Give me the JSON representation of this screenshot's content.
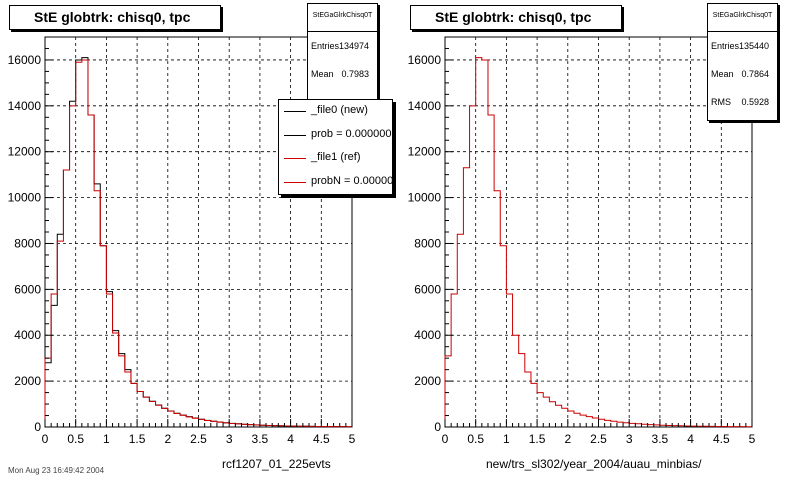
{
  "footer_text": "Mon Aug 23 16:49:42 2004",
  "colors": {
    "new": "#000000",
    "ref": "#cc0000",
    "grid": "#000000"
  },
  "panels": [
    {
      "title": "StE globtrk: chisq0, tpc",
      "stats_title": "StEGaGlrkChisq0T",
      "stats": [
        {
          "key": "Entries",
          "value": "134974"
        },
        {
          "key": "Mean",
          "value": "0.7983"
        }
      ],
      "legend": [
        {
          "label": "_file0 (new)",
          "color": "#000000"
        },
        {
          "label": "prob = 0.000000",
          "color": "#000000"
        },
        {
          "label": "_file1 (ref)",
          "color": "#cc0000"
        },
        {
          "label": "probN = 0.000000",
          "color": "#cc0000"
        }
      ],
      "xlabel": "rcf1207_01_225evts"
    },
    {
      "title": "StE globtrk: chisq0, tpc",
      "stats_title": "StEGaGlrkChisq0T",
      "stats": [
        {
          "key": "Entries",
          "value": "135440"
        },
        {
          "key": "Mean",
          "value": "0.7864"
        },
        {
          "key": "RMS",
          "value": "0.5928"
        }
      ],
      "xlabel": "new/trs_sl302/year_2004/auau_minbias/"
    }
  ],
  "chart_data": [
    {
      "type": "histogram",
      "title": "StE globtrk: chisq0, tpc",
      "xlabel": "rcf1207_01_225evts",
      "xlim": [
        0,
        5
      ],
      "ylim": [
        0,
        17000
      ],
      "xticks": [
        "0",
        "0.5",
        "1",
        "1.5",
        "2",
        "2.5",
        "3",
        "3.5",
        "4",
        "4.5",
        "5"
      ],
      "yticks": [
        "0",
        "2000",
        "4000",
        "6000",
        "8000",
        "10000",
        "12000",
        "14000",
        "16000"
      ],
      "grid": true,
      "bin_width": 0.1,
      "series": [
        {
          "name": "_file0 (new)",
          "color": "#000000",
          "values": [
            2800,
            5300,
            8400,
            11200,
            14200,
            16000,
            16100,
            13600,
            10600,
            7900,
            5900,
            4200,
            3200,
            2500,
            1900,
            1550,
            1300,
            1120,
            960,
            820,
            700,
            600,
            520,
            450,
            390,
            340,
            290,
            250,
            215,
            185,
            160,
            140,
            120,
            105,
            90,
            78,
            68,
            60,
            52,
            46,
            40,
            35,
            31,
            27,
            24,
            21,
            19,
            17,
            15,
            13
          ]
        },
        {
          "name": "_file1 (ref)",
          "color": "#cc0000",
          "values": [
            3000,
            5800,
            8100,
            11200,
            14000,
            15900,
            16000,
            13600,
            10300,
            7900,
            5800,
            4100,
            3100,
            2400,
            1900,
            1550,
            1300,
            1110,
            950,
            810,
            690,
            590,
            510,
            440,
            380,
            330,
            285,
            245,
            210,
            180,
            155,
            135,
            117,
            102,
            88,
            76,
            66,
            58,
            50,
            44,
            38,
            34,
            30,
            26,
            23,
            20,
            18,
            16,
            14,
            12
          ]
        }
      ]
    },
    {
      "type": "histogram",
      "title": "StE globtrk: chisq0, tpc",
      "xlabel": "new/trs_sl302/year_2004/auau_minbias/",
      "xlim": [
        0,
        5
      ],
      "ylim": [
        0,
        17000
      ],
      "xticks": [
        "0",
        "0.5",
        "1",
        "1.5",
        "2",
        "2.5",
        "3",
        "3.5",
        "4",
        "4.5",
        "5"
      ],
      "yticks": [
        "0",
        "2000",
        "4000",
        "6000",
        "8000",
        "10000",
        "12000",
        "14000",
        "16000"
      ],
      "grid": true,
      "bin_width": 0.1,
      "series": [
        {
          "color": "#cc0000",
          "values": [
            3100,
            5800,
            8400,
            11300,
            14000,
            16100,
            16000,
            13600,
            10300,
            7900,
            5800,
            4000,
            3200,
            2400,
            1900,
            1500,
            1300,
            1100,
            950,
            820,
            700,
            600,
            520,
            450,
            390,
            340,
            290,
            250,
            215,
            185,
            160,
            140,
            120,
            105,
            90,
            78,
            68,
            60,
            52,
            46,
            40,
            35,
            31,
            27,
            24,
            21,
            19,
            17,
            15,
            13
          ]
        }
      ]
    }
  ]
}
